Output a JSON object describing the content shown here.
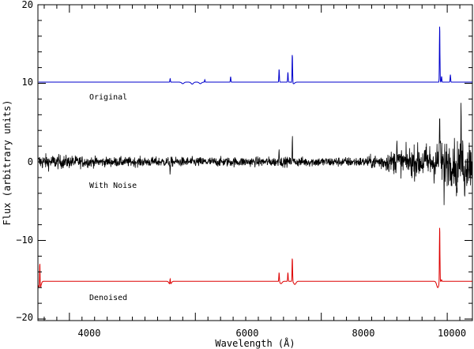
{
  "chart_data": {
    "type": "line",
    "xlabel": "Wavelength (Å)",
    "ylabel": "Flux (arbitrary units)",
    "xlim": [
      3500,
      10400
    ],
    "ylim": [
      -20.2,
      20
    ],
    "x_ticks": [
      4000,
      6000,
      8000,
      10000
    ],
    "y_ticks": [
      -20,
      -10,
      0,
      10,
      20
    ],
    "x_tick_labels": [
      "4000",
      "6000",
      "8000",
      "10000"
    ],
    "y_tick_labels": [
      "−20",
      "−10",
      "0",
      "10",
      "20"
    ],
    "grid": false,
    "colors": {
      "original": "#0000cc",
      "noisy": "#000000",
      "denoised": "#dd0000"
    },
    "annotations": [
      {
        "text": "Original",
        "x": 4200,
        "y": 8.1
      },
      {
        "text": "With Noise",
        "x": 4200,
        "y": -3.2
      },
      {
        "text": "Denoised",
        "x": 4200,
        "y": -17.4
      }
    ],
    "series": [
      {
        "baseline": 10.15,
        "lines": [
          {
            "x": 5600,
            "y": 10.6
          },
          {
            "x": 6150,
            "y": 10.45
          },
          {
            "x": 6560,
            "y": 10.85
          },
          {
            "x": 7330,
            "y": 11.8
          },
          {
            "x": 7470,
            "y": 11.4
          },
          {
            "x": 7540,
            "y": 13.8
          },
          {
            "x": 9880,
            "y": 17.4
          },
          {
            "x": 9910,
            "y": 10.9
          },
          {
            "x": 10050,
            "y": 11.1
          }
        ],
        "dips": [
          {
            "x": 5800,
            "y": 9.95
          },
          {
            "x": 5950,
            "y": 9.9
          },
          {
            "x": 6080,
            "y": 9.95
          },
          {
            "x": 7560,
            "y": 9.95
          }
        ]
      },
      {
        "baseline": 0,
        "noise_amplitude_start": 1.0,
        "noise_amplitude_mid": 0.6,
        "noise_amplitude_end": 3.5,
        "lines": [
          {
            "x": 7540,
            "y": 3.2
          },
          {
            "x": 7330,
            "y": 1.8
          },
          {
            "x": 9880,
            "y": 7.3
          },
          {
            "x": 9200,
            "y": 2.8
          },
          {
            "x": 10220,
            "y": 4.6
          }
        ],
        "negative_spikes": [
          {
            "x": 5600,
            "y": -1.6
          },
          {
            "x": 9950,
            "y": -4.8
          },
          {
            "x": 10150,
            "y": -6.5
          },
          {
            "x": 10280,
            "y": -5.5
          }
        ]
      },
      {
        "baseline": -15.2,
        "lines": [
          {
            "x": 3530,
            "y": -11.9
          },
          {
            "x": 5600,
            "y": -14.5
          },
          {
            "x": 7330,
            "y": -14.0
          },
          {
            "x": 7470,
            "y": -14.1
          },
          {
            "x": 7540,
            "y": -12.2
          },
          {
            "x": 9880,
            "y": -8.0
          },
          {
            "x": 9910,
            "y": -15.0
          }
        ],
        "dips": [
          {
            "x": 3530,
            "y": -16.2
          },
          {
            "x": 5600,
            "y": -15.6
          },
          {
            "x": 7360,
            "y": -15.5
          },
          {
            "x": 7580,
            "y": -15.6
          },
          {
            "x": 9850,
            "y": -16.0
          }
        ]
      }
    ]
  }
}
